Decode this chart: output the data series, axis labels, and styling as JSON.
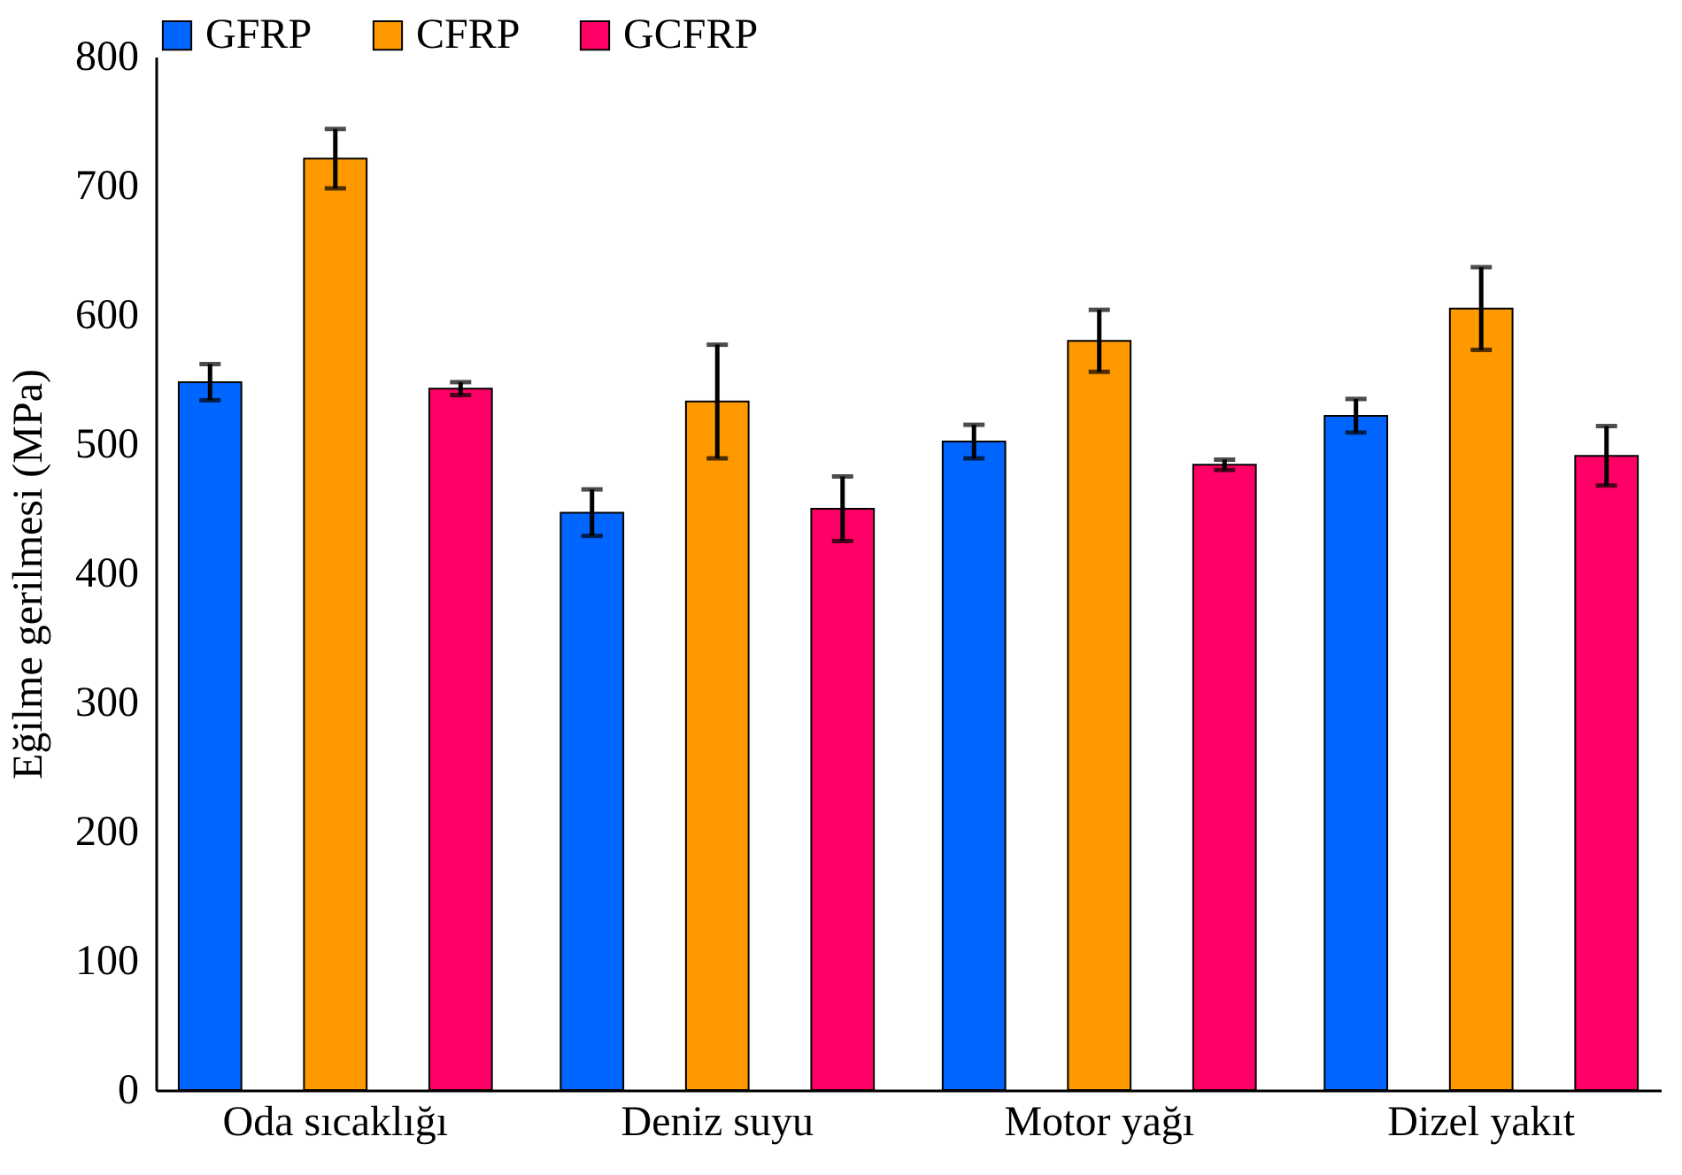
{
  "chart_data": {
    "type": "bar",
    "ylabel": "Eğilme gerilmesi (MPa)",
    "categories": [
      "Oda sıcaklığı",
      "Deniz suyu",
      "Motor yağı",
      "Dizel yakıt"
    ],
    "series": [
      {
        "name": "GFRP",
        "color": "#0066ff",
        "values": [
          548,
          447,
          502,
          522
        ],
        "errors": [
          14,
          18,
          13,
          13
        ]
      },
      {
        "name": "CFRP",
        "color": "#ff9900",
        "values": [
          721,
          533,
          580,
          605
        ],
        "errors": [
          23,
          44,
          24,
          32
        ]
      },
      {
        "name": "GCFRP",
        "color": "#ff0066",
        "values": [
          543,
          450,
          484,
          491
        ],
        "errors": [
          5,
          25,
          4,
          23
        ]
      }
    ],
    "ylim": [
      0,
      800
    ],
    "yticks": [
      0,
      100,
      200,
      300,
      400,
      500,
      600,
      700,
      800
    ],
    "grid": false,
    "legend": "top"
  }
}
